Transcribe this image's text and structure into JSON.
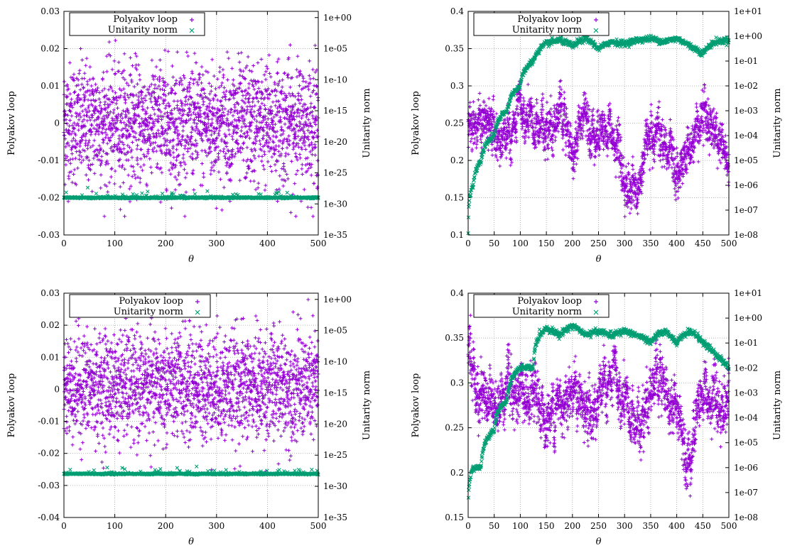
{
  "colors": {
    "polyakov": "#9400d3",
    "unitarity": "#009e73",
    "grid": "#a0a0a0",
    "axis": "#000000"
  },
  "chart_data": [
    {
      "type": "scatter",
      "xlabel": "θ",
      "ylabel": "Polyakov loop",
      "y2label": "Unitarity norm",
      "xlim": [
        0,
        500
      ],
      "ylim": [
        -0.03,
        0.03
      ],
      "y2lim_log10": [
        -35,
        1
      ],
      "x_ticks": [
        "0",
        "100",
        "200",
        "300",
        "400",
        "500"
      ],
      "y_ticks": [
        "-0.03",
        "-0.02",
        "-0.01",
        "0",
        "0.01",
        "0.02",
        "0.03"
      ],
      "y2_ticks": [
        "1e-35",
        "1e-30",
        "1e-25",
        "1e-20",
        "1e-15",
        "1e-10",
        "1e-05",
        "1e+00"
      ],
      "legend": {
        "position": "top-left",
        "entries": [
          "Polyakov loop",
          "Unitarity norm"
        ]
      },
      "grid": true,
      "series": [
        {
          "name": "Polyakov loop",
          "marker": "+",
          "axis": "y",
          "summary": {
            "mean": 0.0,
            "std": 0.008,
            "min": -0.025,
            "max": 0.025
          },
          "x": [
            0,
            50,
            100,
            150,
            200,
            250,
            300,
            350,
            400,
            450,
            500
          ],
          "y": [
            0.002,
            -0.003,
            0.004,
            -0.001,
            0.003,
            -0.002,
            0.001,
            -0.004,
            0.002,
            0.0,
            -0.001
          ]
        },
        {
          "name": "Unitarity norm",
          "marker": "x",
          "axis": "y2",
          "x": [
            0,
            100,
            200,
            300,
            400,
            500
          ],
          "y": [
            1e-29,
            1e-29,
            1e-29,
            1e-29,
            1e-29,
            1e-29
          ]
        }
      ]
    },
    {
      "type": "scatter",
      "xlabel": "θ",
      "ylabel": "Polyakov loop",
      "y2label": "Unitarity norm",
      "xlim": [
        0,
        500
      ],
      "ylim": [
        0.1,
        0.4
      ],
      "y2lim_log10": [
        -8,
        1
      ],
      "x_ticks": [
        "0",
        "50",
        "100",
        "150",
        "200",
        "250",
        "300",
        "350",
        "400",
        "450",
        "500"
      ],
      "y_ticks": [
        "0.1",
        "0.15",
        "0.2",
        "0.25",
        "0.3",
        "0.35",
        "0.4"
      ],
      "y2_ticks": [
        "1e-08",
        "1e-07",
        "1e-06",
        "1e-05",
        "1e-04",
        "1e-03",
        "1e-02",
        "1e-01",
        "1e+00",
        "1e+01"
      ],
      "legend": {
        "position": "top-left",
        "entries": [
          "Polyakov loop",
          "Unitarity norm"
        ]
      },
      "grid": true,
      "series": [
        {
          "name": "Polyakov loop",
          "marker": "+",
          "axis": "y",
          "x": [
            0,
            25,
            50,
            75,
            100,
            125,
            150,
            175,
            200,
            225,
            250,
            275,
            300,
            325,
            350,
            375,
            400,
            425,
            450,
            475,
            500
          ],
          "y": [
            0.26,
            0.25,
            0.24,
            0.22,
            0.26,
            0.24,
            0.25,
            0.26,
            0.21,
            0.27,
            0.23,
            0.24,
            0.17,
            0.15,
            0.25,
            0.22,
            0.18,
            0.22,
            0.27,
            0.24,
            0.2
          ]
        },
        {
          "name": "Unitarity norm",
          "marker": "x",
          "axis": "y2",
          "x": [
            0,
            10,
            25,
            50,
            75,
            100,
            125,
            150,
            175,
            200,
            225,
            250,
            275,
            300,
            325,
            350,
            375,
            400,
            425,
            450,
            475,
            500
          ],
          "y": [
            1e-08,
            1e-06,
            1e-05,
            0.0001,
            0.001,
            0.01,
            0.1,
            0.5,
            0.7,
            0.4,
            0.8,
            0.3,
            0.6,
            0.5,
            0.7,
            0.8,
            0.6,
            0.8,
            0.4,
            0.2,
            0.6,
            0.7
          ]
        }
      ]
    },
    {
      "type": "scatter",
      "xlabel": "θ",
      "ylabel": "Polyakov loop",
      "y2label": "Unitarity norm",
      "xlim": [
        0,
        500
      ],
      "ylim": [
        -0.04,
        0.03
      ],
      "y2lim_log10": [
        -35,
        1
      ],
      "x_ticks": [
        "0",
        "100",
        "200",
        "300",
        "400",
        "500"
      ],
      "y_ticks": [
        "-0.04",
        "-0.03",
        "-0.02",
        "-0.01",
        "0",
        "0.01",
        "0.02",
        "0.03"
      ],
      "y2_ticks": [
        "1e-35",
        "1e-30",
        "1e-25",
        "1e-20",
        "1e-15",
        "1e-10",
        "1e-05",
        "1e+00"
      ],
      "legend": {
        "position": "top-left",
        "entries": [
          "Polyakov loop",
          "Unitarity norm"
        ]
      },
      "grid": true,
      "series": [
        {
          "name": "Polyakov loop",
          "marker": "+",
          "axis": "y",
          "summary": {
            "mean": 0.001,
            "std": 0.0085,
            "min": -0.031,
            "max": 0.028
          },
          "x": [
            0,
            50,
            100,
            150,
            200,
            250,
            300,
            350,
            400,
            450,
            500
          ],
          "y": [
            0.003,
            -0.002,
            0.004,
            0.0,
            0.002,
            -0.001,
            0.003,
            -0.002,
            0.001,
            0.002,
            -0.001
          ]
        },
        {
          "name": "Unitarity norm",
          "marker": "x",
          "axis": "y2",
          "x": [
            0,
            100,
            200,
            300,
            400,
            500
          ],
          "y": [
            1e-28,
            1e-28,
            1e-28,
            1e-28,
            1e-28,
            1e-28
          ]
        }
      ]
    },
    {
      "type": "scatter",
      "xlabel": "θ",
      "ylabel": "Polyakov loop",
      "y2label": "Unitarity norm",
      "xlim": [
        0,
        500
      ],
      "ylim": [
        0.15,
        0.4
      ],
      "y2lim_log10": [
        -8,
        1
      ],
      "x_ticks": [
        "0",
        "50",
        "100",
        "150",
        "200",
        "250",
        "300",
        "350",
        "400",
        "450",
        "500"
      ],
      "y_ticks": [
        "0.15",
        "0.2",
        "0.25",
        "0.3",
        "0.35",
        "0.4"
      ],
      "y2_ticks": [
        "1e-08",
        "1e-07",
        "1e-06",
        "1e-05",
        "1e-04",
        "1e-03",
        "1e-02",
        "1e-01",
        "1e+00",
        "1e+01"
      ],
      "legend": {
        "position": "top-left",
        "entries": [
          "Polyakov loop",
          "Unitarity norm"
        ]
      },
      "grid": true,
      "series": [
        {
          "name": "Polyakov loop",
          "marker": "+",
          "axis": "y",
          "x": [
            0,
            25,
            50,
            75,
            100,
            125,
            150,
            175,
            200,
            225,
            250,
            275,
            300,
            325,
            350,
            375,
            400,
            425,
            450,
            475,
            500
          ],
          "y": [
            0.33,
            0.29,
            0.28,
            0.3,
            0.29,
            0.27,
            0.26,
            0.28,
            0.3,
            0.26,
            0.28,
            0.3,
            0.27,
            0.25,
            0.3,
            0.29,
            0.27,
            0.22,
            0.29,
            0.27,
            0.28
          ]
        },
        {
          "name": "Unitarity norm",
          "marker": "x",
          "axis": "y2",
          "x": [
            0,
            10,
            25,
            50,
            75,
            100,
            125,
            150,
            175,
            200,
            225,
            250,
            275,
            300,
            325,
            350,
            375,
            400,
            425,
            450,
            475,
            500
          ],
          "y": [
            1e-08,
            1e-06,
            1e-06,
            3e-05,
            0.0005,
            0.01,
            0.01,
            0.4,
            0.2,
            0.5,
            0.2,
            0.3,
            0.2,
            0.3,
            0.2,
            0.1,
            0.3,
            0.1,
            0.3,
            0.1,
            0.03,
            0.01
          ]
        }
      ]
    }
  ]
}
